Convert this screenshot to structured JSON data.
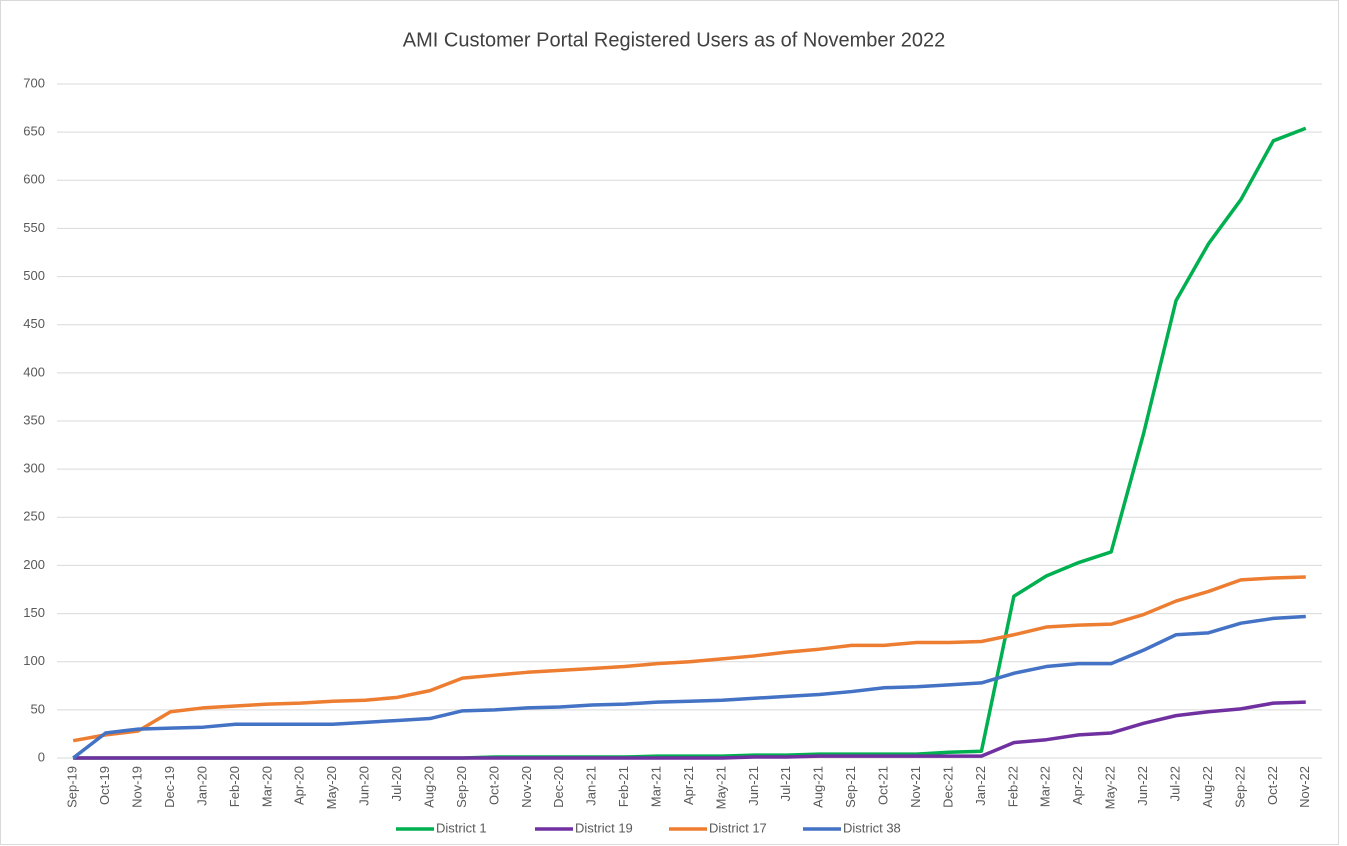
{
  "chart_data": {
    "type": "line",
    "title": "AMI Customer Portal Registered Users as of November 2022",
    "categories": [
      "Sep-19",
      "Oct-19",
      "Nov-19",
      "Dec-19",
      "Jan-20",
      "Feb-20",
      "Mar-20",
      "Apr-20",
      "May-20",
      "Jun-20",
      "Jul-20",
      "Aug-20",
      "Sep-20",
      "Oct-20",
      "Nov-20",
      "Dec-20",
      "Jan-21",
      "Feb-21",
      "Mar-21",
      "Apr-21",
      "May-21",
      "Jun-21",
      "Jul-21",
      "Aug-21",
      "Sep-21",
      "Oct-21",
      "Nov-21",
      "Dec-21",
      "Jan-22",
      "Feb-22",
      "Mar-22",
      "Apr-22",
      "May-22",
      "Jun-22",
      "Jul-22",
      "Aug-22",
      "Sep-22",
      "Oct-22",
      "Nov-22"
    ],
    "series": [
      {
        "name": "District 1",
        "color": "#00b050",
        "values": [
          0,
          0,
          0,
          0,
          0,
          0,
          0,
          0,
          0,
          0,
          0,
          0,
          0,
          1,
          1,
          1,
          1,
          1,
          2,
          2,
          2,
          3,
          3,
          4,
          4,
          4,
          4,
          6,
          7,
          168,
          189,
          203,
          214,
          337,
          475,
          534,
          580,
          641,
          654
        ]
      },
      {
        "name": "District 19",
        "color": "#7030a0",
        "values": [
          0,
          0,
          0,
          0,
          0,
          0,
          0,
          0,
          0,
          0,
          0,
          0,
          0,
          0,
          0,
          0,
          0,
          0,
          0,
          0,
          0,
          1,
          1,
          2,
          2,
          2,
          2,
          2,
          2,
          16,
          19,
          24,
          26,
          36,
          44,
          48,
          51,
          57,
          58
        ]
      },
      {
        "name": "District 17",
        "color": "#ed7d31",
        "values": [
          18,
          24,
          28,
          48,
          52,
          54,
          56,
          57,
          59,
          60,
          63,
          70,
          83,
          86,
          89,
          91,
          93,
          95,
          98,
          100,
          103,
          106,
          110,
          113,
          117,
          117,
          120,
          120,
          121,
          128,
          136,
          138,
          139,
          149,
          163,
          173,
          185,
          187,
          188
        ]
      },
      {
        "name": "District 38",
        "color": "#4472c4",
        "values": [
          0,
          26,
          30,
          31,
          32,
          35,
          35,
          35,
          35,
          37,
          39,
          41,
          49,
          50,
          52,
          53,
          55,
          56,
          58,
          59,
          60,
          62,
          64,
          66,
          69,
          73,
          74,
          76,
          78,
          88,
          95,
          98,
          98,
          112,
          128,
          130,
          140,
          145,
          147
        ]
      }
    ],
    "ylim": [
      0,
      700
    ],
    "yticks": [
      0,
      50,
      100,
      150,
      200,
      250,
      300,
      350,
      400,
      450,
      500,
      550,
      600,
      650,
      700
    ],
    "grid": true,
    "legend": "bottom"
  }
}
